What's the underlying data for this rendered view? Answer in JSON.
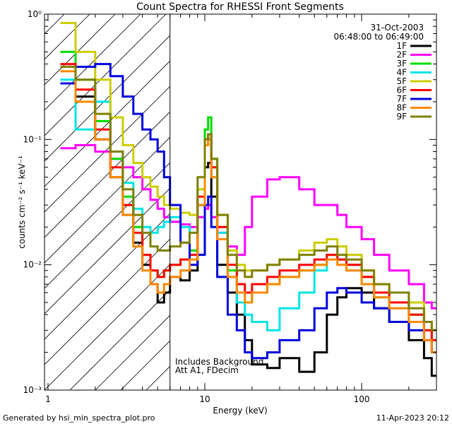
{
  "chart_data": {
    "type": "line",
    "title": "Count Spectra for RHESSI Front Segments",
    "xlabel": "Energy (keV)",
    "ylabel": "counts cm⁻² s⁻¹ keV⁻¹",
    "xscale": "log",
    "yscale": "log",
    "xlim": [
      0.95,
      300
    ],
    "ylim": [
      0.001,
      1.0
    ],
    "x_ticks": [
      1,
      10,
      100
    ],
    "x_tick_labels": [
      "1",
      "10",
      "100"
    ],
    "y_ticks": [
      0.001,
      0.01,
      0.1,
      1
    ],
    "y_tick_labels": [
      "10⁻³",
      "10⁻²",
      "10⁻¹",
      "10⁰"
    ],
    "legend_position": "top-right",
    "date": "31-Oct-2003",
    "time_range": "06:48:00 to 06:49:00",
    "note_lines": [
      "Includes Background",
      "Att A1, FDecim"
    ],
    "hatched_region_keV": [
      0.95,
      6
    ],
    "series": [
      {
        "name": "1F",
        "color": "#000000",
        "x": [
          1.2,
          1.5,
          2,
          2.5,
          3,
          3.5,
          4,
          4.5,
          5,
          5.5,
          6,
          7,
          8,
          9,
          10,
          10.5,
          11,
          12,
          14,
          16,
          18,
          20,
          25,
          30,
          40,
          50,
          60,
          70,
          80,
          100,
          120,
          150,
          200,
          250,
          280
        ],
        "values": [
          0.28,
          0.22,
          0.1,
          0.05,
          0.025,
          0.015,
          0.01,
          0.007,
          0.005,
          0.006,
          0.008,
          0.0075,
          0.009,
          0.03,
          0.06,
          0.065,
          0.035,
          0.01,
          0.006,
          0.004,
          0.0025,
          0.0016,
          0.0015,
          0.0018,
          0.0014,
          0.002,
          0.004,
          0.0055,
          0.0065,
          0.006,
          0.0045,
          0.0035,
          0.0025,
          0.0018,
          0.0013
        ]
      },
      {
        "name": "2F",
        "color": "#ff00ff",
        "x": [
          1.2,
          1.5,
          2,
          2.5,
          3,
          3.5,
          4,
          4.5,
          5,
          5.5,
          6,
          7,
          8,
          9,
          10,
          10.5,
          11,
          12,
          14,
          16,
          18,
          20,
          25,
          30,
          40,
          50,
          60,
          70,
          80,
          100,
          120,
          150,
          200,
          250,
          280
        ],
        "values": [
          0.085,
          0.09,
          0.08,
          0.07,
          0.06,
          0.05,
          0.04,
          0.033,
          0.028,
          0.024,
          0.022,
          0.021,
          0.02,
          0.024,
          0.028,
          0.03,
          0.024,
          0.018,
          0.014,
          0.012,
          0.02,
          0.035,
          0.048,
          0.05,
          0.04,
          0.03,
          0.03,
          0.025,
          0.02,
          0.016,
          0.012,
          0.009,
          0.007,
          0.005,
          0.0045
        ]
      },
      {
        "name": "3F",
        "color": "#00dd00",
        "x": [
          1.2,
          1.5,
          2,
          2.5,
          3,
          3.5,
          4,
          4.5,
          5,
          5.5,
          6,
          7,
          8,
          9,
          10,
          10.5,
          11,
          12,
          14,
          16,
          18,
          20,
          25,
          30,
          40,
          50,
          60,
          70,
          80,
          100,
          120,
          150,
          200,
          250,
          280
        ],
        "values": [
          0.5,
          0.3,
          0.14,
          0.07,
          0.035,
          0.02,
          0.012,
          0.009,
          0.008,
          0.009,
          0.01,
          0.011,
          0.013,
          0.04,
          0.12,
          0.15,
          0.07,
          0.02,
          0.009,
          0.006,
          0.005,
          0.006,
          0.007,
          0.008,
          0.009,
          0.01,
          0.012,
          0.011,
          0.01,
          0.008,
          0.006,
          0.005,
          0.004,
          0.003,
          0.0025
        ]
      },
      {
        "name": "4F",
        "color": "#00e5e5",
        "x": [
          1.2,
          1.5,
          2,
          2.5,
          3,
          3.5,
          4,
          4.5,
          5,
          5.5,
          6,
          7,
          8,
          9,
          10,
          10.5,
          11,
          12,
          14,
          16,
          18,
          20,
          25,
          30,
          40,
          50,
          60,
          70,
          80,
          100,
          120,
          150,
          200,
          250,
          280
        ],
        "values": [
          0.3,
          0.12,
          0.2,
          0.08,
          0.045,
          0.028,
          0.02,
          0.018,
          0.02,
          0.022,
          0.024,
          0.02,
          0.018,
          0.03,
          0.09,
          0.1,
          0.05,
          0.018,
          0.008,
          0.005,
          0.004,
          0.0035,
          0.003,
          0.0045,
          0.006,
          0.009,
          0.012,
          0.011,
          0.009,
          0.007,
          0.0055,
          0.0045,
          0.0035,
          0.0025,
          0.002
        ]
      },
      {
        "name": "5F",
        "color": "#cccc00",
        "x": [
          1.2,
          1.5,
          2,
          2.5,
          3,
          3.5,
          4,
          4.5,
          5,
          5.5,
          6,
          7,
          8,
          9,
          10,
          10.5,
          11,
          12,
          14,
          16,
          18,
          20,
          25,
          30,
          40,
          50,
          60,
          70,
          80,
          100,
          120,
          150,
          200,
          250,
          280
        ],
        "values": [
          0.85,
          0.5,
          0.3,
          0.15,
          0.09,
          0.065,
          0.05,
          0.042,
          0.035,
          0.03,
          0.028,
          0.026,
          0.025,
          0.04,
          0.09,
          0.1,
          0.06,
          0.025,
          0.013,
          0.01,
          0.009,
          0.009,
          0.01,
          0.011,
          0.013,
          0.015,
          0.016,
          0.014,
          0.012,
          0.009,
          0.007,
          0.006,
          0.005,
          0.0035,
          0.003
        ]
      },
      {
        "name": "6F",
        "color": "#ff0000",
        "x": [
          1.2,
          1.5,
          2,
          2.5,
          3,
          3.5,
          4,
          4.5,
          5,
          5.5,
          6,
          7,
          8,
          9,
          10,
          10.5,
          11,
          12,
          14,
          16,
          18,
          20,
          25,
          30,
          40,
          50,
          60,
          70,
          80,
          100,
          120,
          150,
          200,
          250,
          280
        ],
        "values": [
          0.4,
          0.25,
          0.12,
          0.06,
          0.03,
          0.018,
          0.012,
          0.009,
          0.008,
          0.009,
          0.01,
          0.011,
          0.012,
          0.035,
          0.1,
          0.11,
          0.06,
          0.02,
          0.01,
          0.007,
          0.006,
          0.007,
          0.008,
          0.009,
          0.01,
          0.011,
          0.012,
          0.011,
          0.01,
          0.008,
          0.006,
          0.005,
          0.004,
          0.003,
          0.0025
        ]
      },
      {
        "name": "7F",
        "color": "#0000dd",
        "x": [
          1.2,
          1.5,
          2,
          2.5,
          3,
          3.5,
          4,
          4.5,
          5,
          5.5,
          6,
          7,
          8,
          9,
          10,
          10.5,
          11,
          12,
          14,
          16,
          18,
          20,
          25,
          30,
          40,
          50,
          60,
          70,
          80,
          100,
          120,
          150,
          200,
          250,
          280
        ],
        "values": [
          0.28,
          0.38,
          0.4,
          0.32,
          0.22,
          0.16,
          0.12,
          0.1,
          0.08,
          0.05,
          0.03,
          0.015,
          0.01,
          0.012,
          0.03,
          0.035,
          0.02,
          0.008,
          0.004,
          0.003,
          0.002,
          0.0018,
          0.002,
          0.0025,
          0.003,
          0.0045,
          0.006,
          0.0065,
          0.006,
          0.005,
          0.0045,
          0.0035,
          0.003,
          0.0025,
          0.002
        ]
      },
      {
        "name": "8F",
        "color": "#ff8800",
        "x": [
          1.2,
          1.5,
          2,
          2.5,
          3,
          3.5,
          4,
          4.5,
          5,
          5.5,
          6,
          7,
          8,
          9,
          10,
          10.5,
          11,
          12,
          14,
          16,
          18,
          20,
          25,
          30,
          40,
          50,
          60,
          70,
          80,
          100,
          120,
          150,
          200,
          250,
          280
        ],
        "values": [
          0.35,
          0.2,
          0.1,
          0.05,
          0.025,
          0.014,
          0.009,
          0.007,
          0.006,
          0.007,
          0.008,
          0.009,
          0.011,
          0.03,
          0.09,
          0.1,
          0.05,
          0.016,
          0.008,
          0.006,
          0.005,
          0.006,
          0.007,
          0.008,
          0.009,
          0.01,
          0.011,
          0.01,
          0.009,
          0.007,
          0.0055,
          0.0045,
          0.0035,
          0.0025,
          0.002
        ]
      },
      {
        "name": "9F",
        "color": "#808000",
        "x": [
          1.2,
          1.5,
          2,
          2.5,
          3,
          3.5,
          4,
          4.5,
          5,
          5.5,
          6,
          7,
          8,
          9,
          10,
          10.5,
          11,
          12,
          14,
          16,
          18,
          20,
          25,
          30,
          40,
          50,
          60,
          70,
          80,
          100,
          120,
          150,
          200,
          250,
          280
        ],
        "values": [
          0.38,
          0.3,
          0.16,
          0.08,
          0.04,
          0.025,
          0.018,
          0.014,
          0.013,
          0.013,
          0.014,
          0.015,
          0.018,
          0.05,
          0.1,
          0.11,
          0.07,
          0.025,
          0.012,
          0.009,
          0.008,
          0.009,
          0.01,
          0.011,
          0.012,
          0.013,
          0.014,
          0.012,
          0.011,
          0.009,
          0.007,
          0.006,
          0.0045,
          0.0035,
          0.003
        ]
      }
    ]
  },
  "footer": {
    "generated_by": "Generated by hsi_min_spectra_plot.pro",
    "timestamp": "11-Apr-2023 20:12"
  }
}
